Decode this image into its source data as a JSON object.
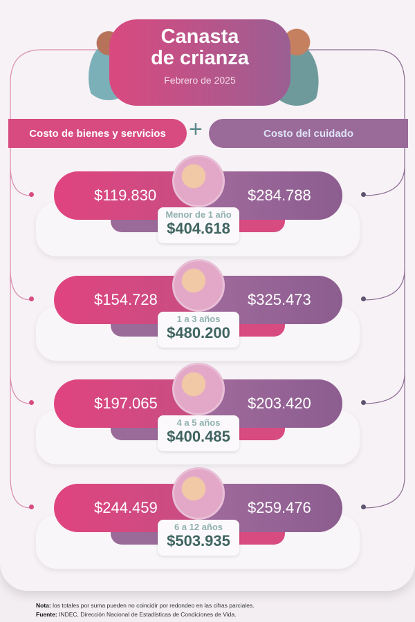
{
  "header": {
    "title_line1": "Canasta",
    "title_line2": "de crianza",
    "subtitle": "Febrero de 2025"
  },
  "columns": {
    "left": "Costo de bienes y servicios",
    "plus": "+",
    "right": "Costo del cuidado"
  },
  "rows": [
    {
      "age": "Menor de 1 año",
      "bienes": "$119.830",
      "cuidado": "$284.788",
      "total": "$404.618"
    },
    {
      "age": "1 a 3 años",
      "bienes": "$154.728",
      "cuidado": "$325.473",
      "total": "$480.200"
    },
    {
      "age": "4 a 5 años",
      "bienes": "$197.065",
      "cuidado": "$203.420",
      "total": "$400.485"
    },
    {
      "age": "6 a 12 años",
      "bienes": "$244.459",
      "cuidado": "$259.476",
      "total": "$503.935"
    }
  ],
  "footer": {
    "nota_label": "Nota:",
    "nota": "los totales por suma pueden no coincidir por redondeo en las cifras parciales.",
    "fuente_label": "Fuente:",
    "fuente": "INDEC, Dirección Nacional de Estadísticas de Condiciones de Vida."
  },
  "colors": {
    "pink": "#d74b80",
    "purple": "#9a6a99",
    "teal": "#3f6461"
  }
}
